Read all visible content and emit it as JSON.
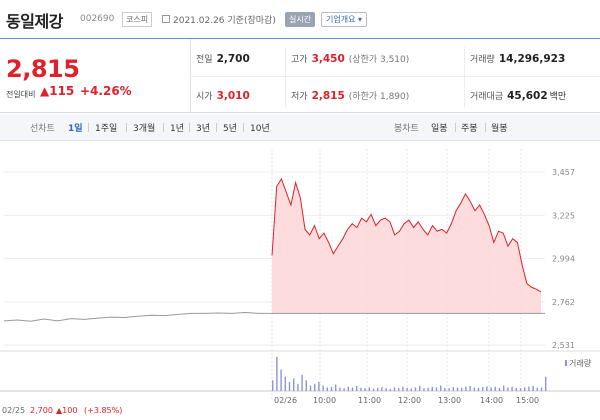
{
  "header": {
    "name": "동일제강",
    "code": "002690",
    "market": "코스피",
    "date": "2021.02.26",
    "date_suffix": "기준(장마감)",
    "realtime_btn": "실시간",
    "company_btn": "기업개요 ▾"
  },
  "quote": {
    "price": "2,815",
    "change_label": "전일대비",
    "change_value": "▲115",
    "change_pct": "+4.26%",
    "prev_label": "전일",
    "prev": "2,700",
    "open_label": "시가",
    "open": "3,010",
    "high_label": "고가",
    "high": "3,450",
    "upper_limit": "(상한가 3,510)",
    "low_label": "저가",
    "low": "2,815",
    "lower_limit": "(하한가 1,890)",
    "volume_label": "거래량",
    "volume": "14,296,923",
    "amount_label": "거래대금",
    "amount": "45,602",
    "amount_unit": "백만"
  },
  "periods": {
    "line_label": "선차트",
    "items": [
      "1일",
      "1주일",
      "3개월",
      "1년",
      "3년",
      "5년",
      "10년"
    ],
    "active_index": 0,
    "candle_label": "봉차트",
    "candle_items": [
      "일봉",
      "주봉",
      "월봉"
    ]
  },
  "chart_data": {
    "type": "line",
    "ylim": [
      2531,
      3457
    ],
    "y_ticks": [
      "3,457",
      "3,225",
      "2,994",
      "2,762",
      "2,531"
    ],
    "y_tick_values": [
      3457,
      3225,
      2994,
      2762,
      2531
    ],
    "x_ticks": [
      "02/25",
      "02/26",
      "10:00",
      "11:00",
      "12:00",
      "13:00",
      "14:00",
      "15:00"
    ],
    "series": [
      {
        "values": [
          2660,
          2665,
          2658,
          2670,
          2660,
          2672,
          2668,
          2675,
          2680,
          2678,
          2685,
          2690,
          2688,
          2695,
          2700,
          2700,
          2702,
          2700,
          2705,
          2700,
          2700
        ]
      },
      {
        "values": [
          3010,
          3380,
          3420,
          3350,
          3280,
          3400,
          3320,
          3150,
          3120,
          3170,
          3100,
          3130,
          3080,
          3020,
          3060,
          3100,
          3150,
          3180,
          3160,
          3210,
          3190,
          3230,
          3170,
          3200,
          3210,
          3190,
          3120,
          3140,
          3180,
          3200,
          3160,
          3190,
          3150,
          3120,
          3170,
          3140,
          3150,
          3130,
          3180,
          3250,
          3290,
          3340,
          3300,
          3250,
          3280,
          3230,
          3170,
          3080,
          3140,
          3130,
          3060,
          3100,
          3080,
          2960,
          2860,
          2840,
          2830,
          2815
        ]
      }
    ],
    "prev_close": 2700,
    "volume_label": "거래량",
    "volume_values": [
      30,
      95,
      60,
      40,
      25,
      35,
      20,
      45,
      30,
      15,
      20,
      25,
      15,
      10,
      12,
      18,
      10,
      8,
      12,
      10,
      14,
      9,
      8,
      10,
      7,
      9,
      11,
      8,
      6,
      10,
      8,
      12,
      9,
      7,
      10,
      14,
      8,
      9,
      12,
      10,
      15,
      9,
      8,
      11,
      10,
      9,
      12,
      14,
      10,
      9,
      11,
      13,
      10,
      12,
      9,
      15,
      10,
      12,
      9,
      8,
      10,
      12,
      14,
      9,
      10,
      40
    ],
    "footer_date": "02/25",
    "footer_price": "2,700",
    "footer_change": "▲100",
    "footer_pct": "(+3.85%)"
  },
  "colors": {
    "up": "#e0202a",
    "line": "#e0202a",
    "fill": "#fbd6d6",
    "prev_line": "#999999",
    "volume": "#8c93d8"
  }
}
